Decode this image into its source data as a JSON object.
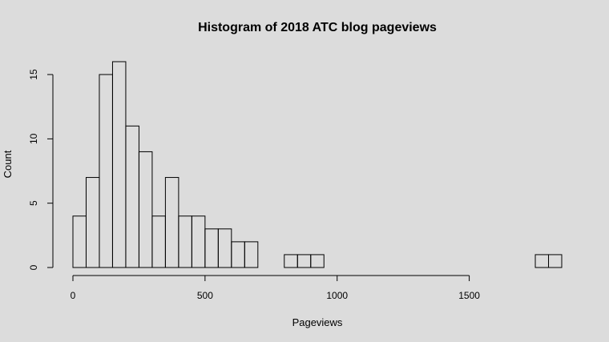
{
  "chart_data": {
    "type": "bar",
    "title": "Histogram of 2018 ATC blog pageviews",
    "xlabel": "Pageviews",
    "ylabel": "Count",
    "bin_width": 50,
    "bin_starts": [
      0,
      50,
      100,
      150,
      200,
      250,
      300,
      350,
      400,
      450,
      500,
      550,
      600,
      650,
      700,
      750,
      800,
      850,
      900,
      950,
      1000,
      1050,
      1100,
      1150,
      1200,
      1250,
      1300,
      1350,
      1400,
      1450,
      1500,
      1550,
      1600,
      1650,
      1700,
      1750,
      1800
    ],
    "values": [
      4,
      7,
      15,
      16,
      11,
      9,
      4,
      7,
      4,
      4,
      3,
      3,
      2,
      2,
      0,
      0,
      1,
      1,
      1,
      0,
      0,
      0,
      0,
      0,
      0,
      0,
      0,
      0,
      0,
      0,
      0,
      0,
      0,
      0,
      0,
      1,
      1
    ],
    "xlim": [
      0,
      1850
    ],
    "ylim": [
      0,
      16
    ],
    "x_ticks": [
      0,
      500,
      1000,
      1500
    ],
    "y_ticks": [
      0,
      5,
      10,
      15
    ],
    "grid": false,
    "legend": "none"
  }
}
